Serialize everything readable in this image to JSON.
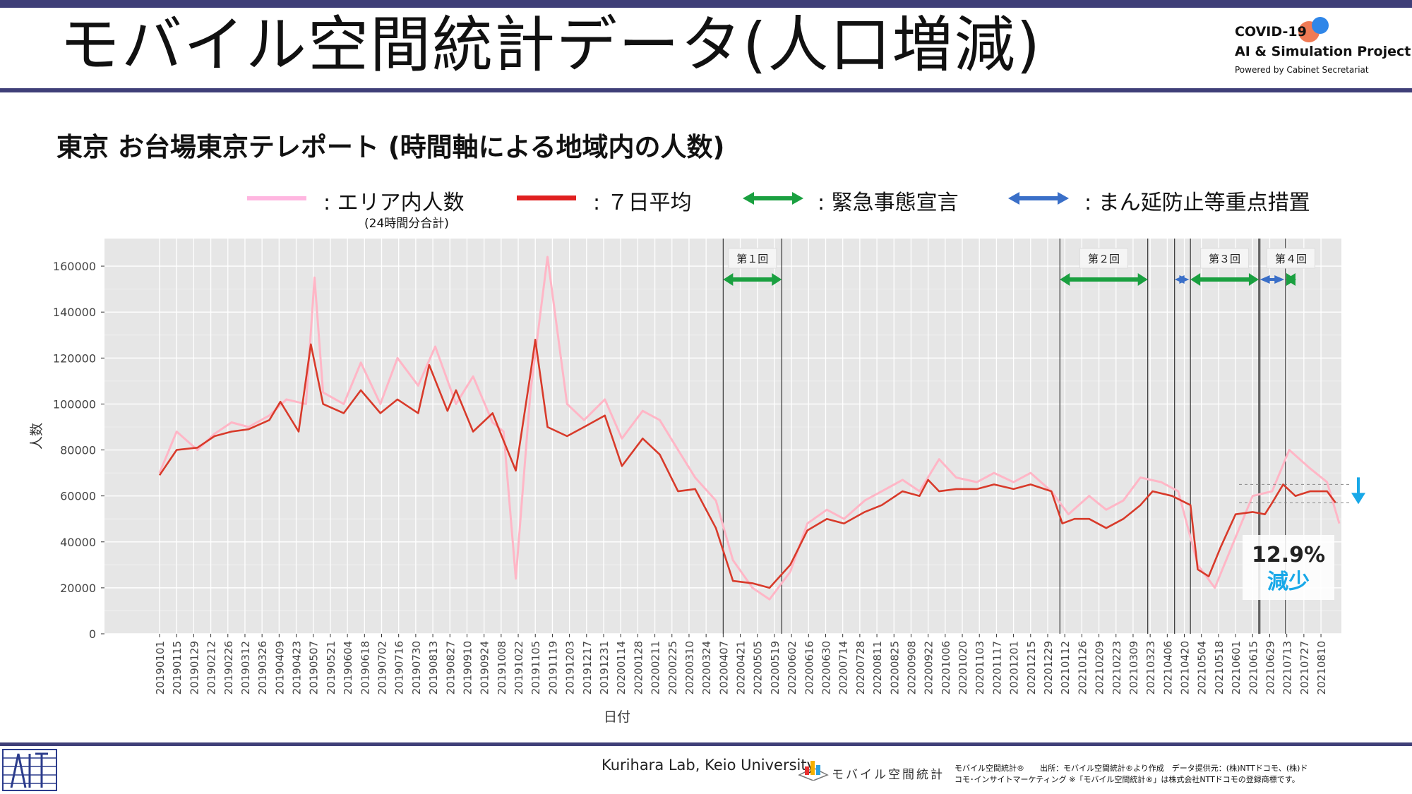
{
  "header": {
    "title": "モバイル空間統計データ(人口増減)",
    "logo_line1": "COVID-19",
    "logo_line2": "AI & Simulation Project",
    "logo_line3": "Powered by Cabinet Secretariat"
  },
  "subtitle": "東京 お台場東京テレポート (時間軸による地域内の人数)",
  "legend": {
    "area": ": エリア内人数",
    "area_note": "(24時間分合計)",
    "avg": ": ７日平均",
    "emergency": ": 緊急事態宣言",
    "semi": ": まん延防止等重点措置"
  },
  "colors": {
    "area": "#ffb6c6",
    "avg": "#e02020",
    "emergency": "#1aa040",
    "semi": "#3a6fc8",
    "annotation": "#18a8e8",
    "plot_bg": "#e6e6e6"
  },
  "annotation": {
    "percent": "12.9%",
    "label": "減少"
  },
  "footer": {
    "credit": "Kurihara Lab, Keio University",
    "logo_text": "モバイル空間統計",
    "source_line1": "モバイル空間統計®　　出所：モバイル空間統計®より作成　データ提供元：(株)NTTドコモ、(株)ド",
    "source_line2": "コモ･インサイトマーケティング ※「モバイル空間統計®」は株式会社NTTドコモの登録商標です。"
  },
  "chart_data": {
    "type": "line",
    "title": "",
    "xlabel": "日付",
    "ylabel": "人数",
    "ylim": [
      0,
      172000
    ],
    "y_ticks": [
      0,
      20000,
      40000,
      60000,
      80000,
      100000,
      120000,
      140000,
      160000
    ],
    "x_start": "2019-01-01",
    "x_end": "2021-08-25",
    "x_tick_labels": [
      "20190101",
      "20190115",
      "20190129",
      "20190212",
      "20190226",
      "20190312",
      "20190326",
      "20190409",
      "20190423",
      "20190507",
      "20190521",
      "20190604",
      "20190618",
      "20190702",
      "20190716",
      "20190730",
      "20190813",
      "20190827",
      "20190910",
      "20190924",
      "20191008",
      "20191022",
      "20191105",
      "20191119",
      "20191203",
      "20191217",
      "20191231",
      "20200114",
      "20200128",
      "20200211",
      "20200225",
      "20200310",
      "20200324",
      "20200407",
      "20200421",
      "20200505",
      "20200519",
      "20200602",
      "20200616",
      "20200630",
      "20200714",
      "20200728",
      "20200811",
      "20200825",
      "20200908",
      "20200922",
      "20201006",
      "20201020",
      "20201103",
      "20201117",
      "20201201",
      "20201215",
      "20201229",
      "20210112",
      "20210126",
      "20210209",
      "20210223",
      "20210309",
      "20210323",
      "20210406",
      "20210420",
      "20210504",
      "20210518",
      "20210601",
      "20210615",
      "20210629",
      "20210713",
      "20210727",
      "20210810"
    ],
    "grid": true,
    "legend_position": "top",
    "series": [
      {
        "name": "エリア内人数",
        "note": "(24時間分合計)",
        "x": [
          "2019-01-01",
          "2019-01-15",
          "2019-02-01",
          "2019-02-15",
          "2019-03-01",
          "2019-03-15",
          "2019-04-01",
          "2019-04-15",
          "2019-05-01",
          "2019-05-08",
          "2019-05-15",
          "2019-06-01",
          "2019-06-15",
          "2019-07-01",
          "2019-07-15",
          "2019-08-01",
          "2019-08-15",
          "2019-09-01",
          "2019-09-15",
          "2019-10-01",
          "2019-10-10",
          "2019-10-20",
          "2019-11-01",
          "2019-11-15",
          "2019-12-01",
          "2019-12-15",
          "2020-01-01",
          "2020-01-15",
          "2020-02-01",
          "2020-02-15",
          "2020-03-01",
          "2020-03-15",
          "2020-04-01",
          "2020-04-15",
          "2020-05-01",
          "2020-05-15",
          "2020-06-01",
          "2020-06-15",
          "2020-07-01",
          "2020-07-15",
          "2020-08-01",
          "2020-08-15",
          "2020-09-01",
          "2020-09-15",
          "2020-10-01",
          "2020-10-15",
          "2020-11-01",
          "2020-11-15",
          "2020-12-01",
          "2020-12-15",
          "2021-01-01",
          "2021-01-15",
          "2021-02-01",
          "2021-02-15",
          "2021-03-01",
          "2021-03-15",
          "2021-04-01",
          "2021-04-15",
          "2021-05-01",
          "2021-05-15",
          "2021-06-01",
          "2021-06-15",
          "2021-07-01",
          "2021-07-15",
          "2021-08-01",
          "2021-08-15",
          "2021-08-25"
        ],
        "values": [
          70000,
          88000,
          80000,
          87000,
          92000,
          90000,
          95000,
          102000,
          100000,
          155000,
          105000,
          100000,
          118000,
          100000,
          120000,
          108000,
          125000,
          100000,
          112000,
          92000,
          88000,
          24000,
          105000,
          164000,
          100000,
          93000,
          102000,
          85000,
          97000,
          93000,
          80000,
          68000,
          58000,
          32000,
          20000,
          15000,
          27000,
          48000,
          54000,
          50000,
          58000,
          62000,
          67000,
          62000,
          76000,
          68000,
          66000,
          70000,
          66000,
          70000,
          62000,
          52000,
          60000,
          54000,
          58000,
          68000,
          66000,
          62000,
          30000,
          20000,
          42000,
          60000,
          62000,
          80000,
          72000,
          66000,
          48000
        ]
      },
      {
        "name": "７日平均",
        "x": [
          "2019-01-01",
          "2019-01-15",
          "2019-02-01",
          "2019-02-15",
          "2019-03-01",
          "2019-03-15",
          "2019-04-01",
          "2019-04-10",
          "2019-04-25",
          "2019-05-05",
          "2019-05-15",
          "2019-06-01",
          "2019-06-15",
          "2019-07-01",
          "2019-07-15",
          "2019-08-01",
          "2019-08-10",
          "2019-08-25",
          "2019-09-01",
          "2019-09-15",
          "2019-10-01",
          "2019-10-10",
          "2019-10-20",
          "2019-11-01",
          "2019-11-05",
          "2019-11-15",
          "2019-12-01",
          "2019-12-15",
          "2020-01-01",
          "2020-01-15",
          "2020-02-01",
          "2020-02-15",
          "2020-03-01",
          "2020-03-15",
          "2020-04-01",
          "2020-04-15",
          "2020-05-01",
          "2020-05-15",
          "2020-06-01",
          "2020-06-15",
          "2020-07-01",
          "2020-07-15",
          "2020-08-01",
          "2020-08-15",
          "2020-09-01",
          "2020-09-15",
          "2020-09-22",
          "2020-10-01",
          "2020-10-15",
          "2020-11-01",
          "2020-11-15",
          "2020-12-01",
          "2020-12-15",
          "2021-01-01",
          "2021-01-10",
          "2021-01-20",
          "2021-02-01",
          "2021-02-15",
          "2021-03-01",
          "2021-03-15",
          "2021-03-25",
          "2021-04-10",
          "2021-04-25",
          "2021-05-01",
          "2021-05-10",
          "2021-05-20",
          "2021-06-01",
          "2021-06-15",
          "2021-06-25",
          "2021-07-01",
          "2021-07-10",
          "2021-07-20",
          "2021-08-01",
          "2021-08-15",
          "2021-08-22"
        ],
        "values": [
          69000,
          80000,
          81000,
          86000,
          88000,
          89000,
          93000,
          101000,
          88000,
          126000,
          100000,
          96000,
          106000,
          96000,
          102000,
          96000,
          117000,
          97000,
          106000,
          88000,
          96000,
          84000,
          71000,
          113000,
          128000,
          90000,
          86000,
          90000,
          95000,
          73000,
          85000,
          78000,
          62000,
          63000,
          46000,
          23000,
          22000,
          20000,
          30000,
          45000,
          50000,
          48000,
          53000,
          56000,
          62000,
          60000,
          67000,
          62000,
          63000,
          63000,
          65000,
          63000,
          65000,
          62000,
          48000,
          50000,
          50000,
          46000,
          50000,
          56000,
          62000,
          60000,
          56000,
          28000,
          25000,
          38000,
          52000,
          53000,
          52000,
          57000,
          65000,
          60000,
          62000,
          62000,
          57000
        ]
      }
    ],
    "events": [
      {
        "label": "第１回",
        "type": "緊急事態宣言",
        "start": "2020-04-07",
        "end": "2020-05-25"
      },
      {
        "label": "第２回",
        "type": "緊急事態宣言",
        "start": "2021-01-08",
        "end": "2021-03-21"
      },
      {
        "label": "",
        "type": "まん延防止等重点措置",
        "start": "2021-04-12",
        "end": "2021-04-24"
      },
      {
        "label": "第３回",
        "type": "緊急事態宣言",
        "start": "2021-04-25",
        "end": "2021-06-20"
      },
      {
        "label": "",
        "type": "まん延防止等重点措置",
        "start": "2021-06-21",
        "end": "2021-07-11"
      },
      {
        "label": "第４回",
        "type": "緊急事態宣言",
        "start": "2021-07-12",
        "end": "2021-08-31"
      }
    ]
  }
}
